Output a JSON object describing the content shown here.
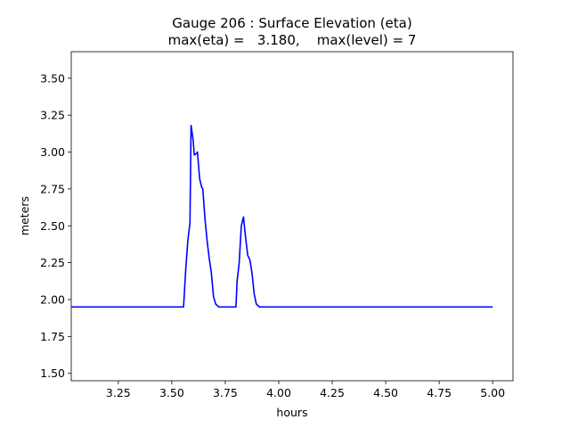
{
  "chart_data": {
    "type": "line",
    "title_lines": [
      "Gauge 206 : Surface Elevation (eta)",
      "max(eta) =   3.180,    max(level) = 7"
    ],
    "xlabel": "hours",
    "ylabel": "meters",
    "xlim": [
      3.03,
      5.095
    ],
    "ylim": [
      1.45,
      3.68
    ],
    "xticks": [
      3.25,
      3.5,
      3.75,
      4.0,
      4.25,
      4.5,
      4.75,
      5.0
    ],
    "xtick_labels": [
      "3.25",
      "3.50",
      "3.75",
      "4.00",
      "4.25",
      "4.50",
      "4.75",
      "5.00"
    ],
    "yticks": [
      1.5,
      1.75,
      2.0,
      2.25,
      2.5,
      2.75,
      3.0,
      3.25,
      3.5
    ],
    "ytick_labels": [
      "1.50",
      "1.75",
      "2.00",
      "2.25",
      "2.50",
      "2.75",
      "3.00",
      "3.25",
      "3.50"
    ],
    "grid": false,
    "series": [
      {
        "color": "#0000ff",
        "x": [
          3.03,
          3.555,
          3.565,
          3.575,
          3.585,
          3.59,
          3.6,
          3.605,
          3.615,
          3.62,
          3.63,
          3.64,
          3.645,
          3.655,
          3.665,
          3.675,
          3.685,
          3.695,
          3.705,
          3.72,
          3.75,
          3.8,
          3.805,
          3.815,
          3.825,
          3.835,
          3.845,
          3.855,
          3.865,
          3.875,
          3.885,
          3.895,
          3.91,
          3.95,
          4.0,
          4.5,
          5.0
        ],
        "y": [
          1.95,
          1.95,
          2.2,
          2.4,
          2.52,
          3.18,
          3.08,
          2.98,
          2.99,
          3.0,
          2.82,
          2.76,
          2.75,
          2.55,
          2.4,
          2.28,
          2.18,
          2.02,
          1.97,
          1.95,
          1.95,
          1.95,
          2.12,
          2.25,
          2.5,
          2.56,
          2.42,
          2.3,
          2.27,
          2.18,
          2.04,
          1.97,
          1.95,
          1.95,
          1.95,
          1.95,
          1.95
        ]
      }
    ]
  }
}
